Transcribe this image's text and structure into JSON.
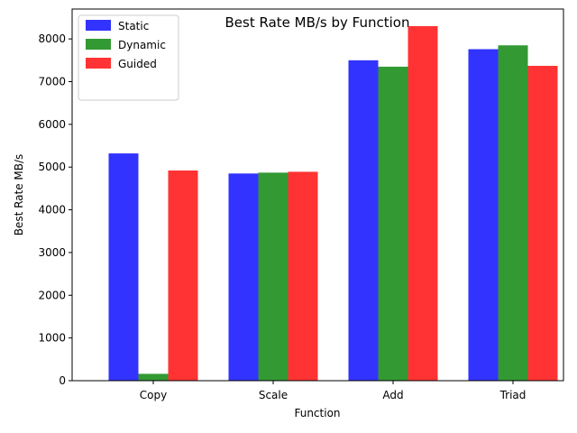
{
  "chart_data": {
    "type": "bar",
    "title": "Best Rate MB/s by Function",
    "xlabel": "Function",
    "ylabel": "Best Rate MB/s",
    "categories": [
      "Copy",
      "Scale",
      "Add",
      "Triad"
    ],
    "series": [
      {
        "name": "Static",
        "color": "#3333ff",
        "values": [
          5320,
          4850,
          7500,
          7760
        ]
      },
      {
        "name": "Dynamic",
        "color": "#339933",
        "values": [
          160,
          4870,
          7350,
          7850
        ]
      },
      {
        "name": "Guided",
        "color": "#ff3333",
        "values": [
          4920,
          4890,
          8300,
          7370
        ]
      }
    ],
    "ylim": [
      0,
      8700
    ],
    "yticks": [
      0,
      1000,
      2000,
      3000,
      4000,
      5000,
      6000,
      7000,
      8000
    ],
    "grid": false,
    "legend_position": "top-left"
  }
}
